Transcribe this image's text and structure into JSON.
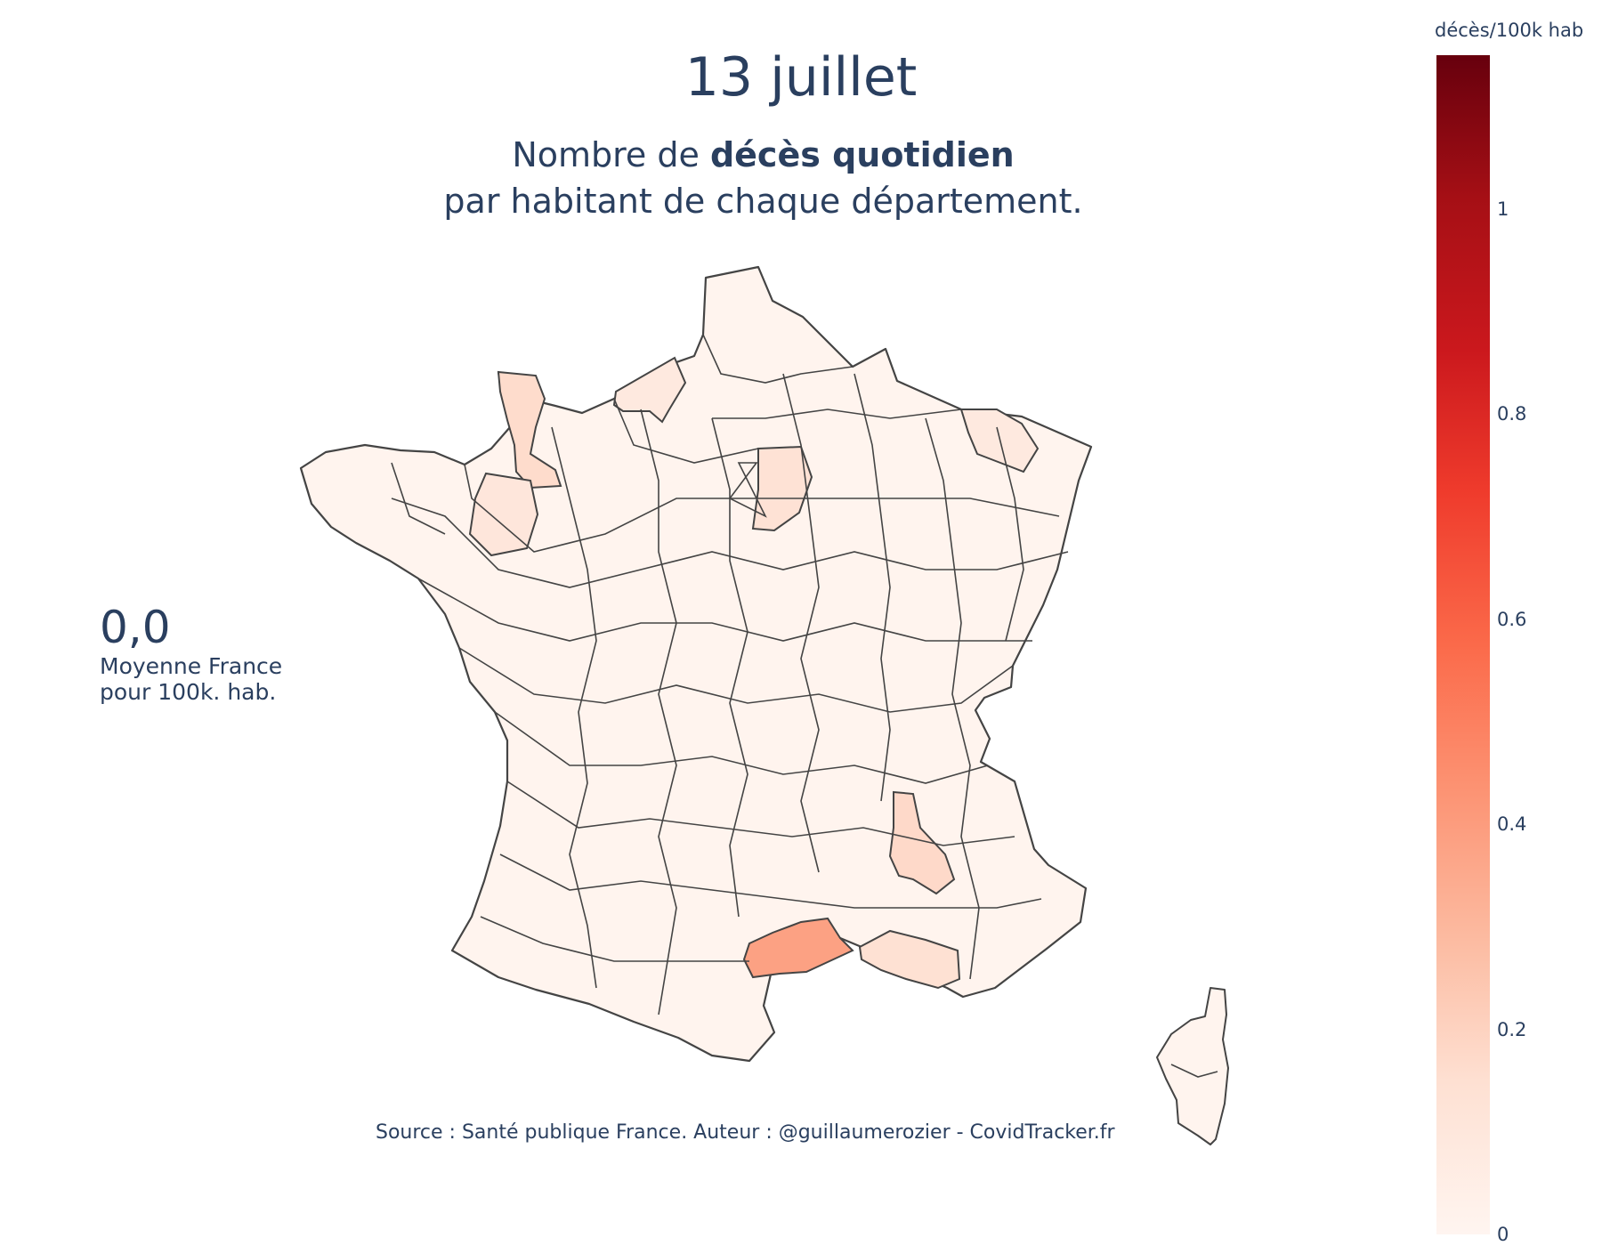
{
  "title": "13 juillet",
  "subtitle": {
    "prefix": "Nombre de ",
    "bold": "décès quotidien",
    "line2": "par habitant de chaque département."
  },
  "average": {
    "value": "0,0",
    "label_line1": "Moyenne France",
    "label_line2": "pour 100k. hab."
  },
  "source": "Source : Santé publique France. Auteur : @guillaumerozier - CovidTracker.fr",
  "colorbar": {
    "title": "décès/100k hab",
    "range": [
      0,
      1.15
    ],
    "ticks": [
      {
        "label": "0",
        "value": 0
      },
      {
        "label": "0.2",
        "value": 0.2
      },
      {
        "label": "0.4",
        "value": 0.4
      },
      {
        "label": "0.6",
        "value": 0.6
      },
      {
        "label": "0.8",
        "value": 0.8
      },
      {
        "label": "1",
        "value": 1
      }
    ],
    "scale_colors": [
      "#fff5f0",
      "#fee0d2",
      "#fcbba1",
      "#fc9272",
      "#fb6a4a",
      "#ef3b2c",
      "#cb181d",
      "#a50f15",
      "#67000d"
    ]
  },
  "map": {
    "border_color": "#444444",
    "highlighted_regions": [
      {
        "region": "Hérault",
        "value": 0.38
      },
      {
        "region": "Drôme",
        "value": 0.17
      },
      {
        "region": "Manche",
        "value": 0.16
      },
      {
        "region": "Bouches-du-Rhône",
        "value": 0.14
      },
      {
        "region": "Aube",
        "value": 0.13
      },
      {
        "region": "Mayenne",
        "value": 0.1
      },
      {
        "region": "Seine-Maritime",
        "value": 0.08
      },
      {
        "region": "Moselle",
        "value": 0.08
      }
    ],
    "baseline_value": 0.01
  }
}
